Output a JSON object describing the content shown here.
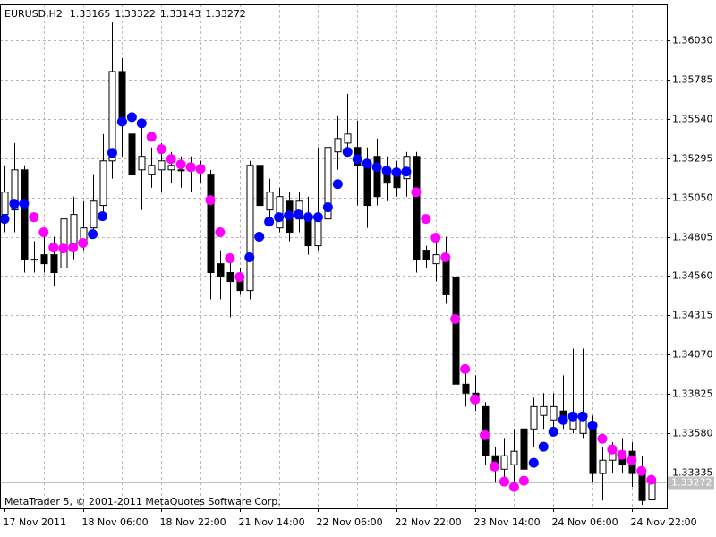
{
  "chart_data": {
    "type": "candlestick",
    "symbol": "EURUSD,H2",
    "footer": "MetaTrader 5, © 2001-2011 MetaQuotes Software Corp.",
    "categories": [
      "17 Nov 2011",
      null,
      null,
      null,
      null,
      null,
      null,
      null,
      "18 Nov 06:00",
      null,
      null,
      null,
      null,
      null,
      null,
      null,
      "18 Nov 22:00",
      null,
      null,
      null,
      null,
      null,
      null,
      null,
      "21 Nov 14:00",
      null,
      null,
      null,
      null,
      null,
      null,
      null,
      "22 Nov 06:00",
      null,
      null,
      null,
      null,
      null,
      null,
      null,
      "22 Nov 22:00",
      null,
      null,
      null,
      null,
      null,
      null,
      null,
      "23 Nov 14:00",
      null,
      null,
      null,
      null,
      null,
      null,
      null,
      "24 Nov 06:00",
      null,
      null,
      null,
      null,
      null,
      null,
      null,
      "24 Nov 22:00",
      null,
      null
    ],
    "open": [
      1.34944,
      1.34972,
      1.35222,
      1.34665,
      1.34693,
      1.34693,
      1.3461,
      1.34749,
      1.34777,
      1.3486,
      1.35,
      1.35278,
      1.35835,
      1.35445,
      1.35222,
      1.35195,
      1.35222,
      1.35222,
      1.35222,
      1.35222,
      1.3525,
      1.35195,
      1.34637,
      1.34582,
      1.34554,
      1.3447,
      1.3525,
      1.34972,
      1.3486,
      1.35027,
      1.34916,
      1.34944,
      1.34749,
      1.34916,
      1.35334,
      1.35389,
      1.35362,
      1.35278,
      1.35306,
      1.35222,
      1.35195,
      1.35167,
      1.35306,
      1.34721,
      1.34637,
      1.34693,
      1.34554,
      1.33886,
      1.3383,
      1.33746,
      1.3344,
      1.33356,
      1.33384,
      1.33607,
      1.33607,
      1.33691,
      1.33663,
      1.33719,
      1.33607,
      1.33579,
      1.33635,
      1.33329,
      1.33412,
      1.33468,
      1.33468,
      1.33329,
      1.33165
    ],
    "high": [
      1.3525,
      1.35389,
      1.3525,
      1.34777,
      1.3486,
      1.34805,
      1.35027,
      1.35055,
      1.35027,
      1.35195,
      1.35445,
      1.36141,
      1.35919,
      1.35557,
      1.35501,
      1.35362,
      1.35389,
      1.35334,
      1.35306,
      1.35306,
      1.35278,
      1.35222,
      1.34721,
      1.34665,
      1.3461,
      1.35278,
      1.35389,
      1.35167,
      1.35111,
      1.35083,
      1.35083,
      1.35055,
      1.35362,
      1.35557,
      1.35557,
      1.35696,
      1.35529,
      1.35362,
      1.35417,
      1.35306,
      1.35278,
      1.35334,
      1.35334,
      1.34749,
      1.34777,
      1.34805,
      1.34582,
      1.33997,
      1.33941,
      1.33774,
      1.33496,
      1.33551,
      1.33607,
      1.33663,
      1.33802,
      1.3383,
      1.3383,
      1.33941,
      1.34108,
      1.34108,
      1.33691,
      1.33496,
      1.33524,
      1.33551,
      1.33524,
      1.3344,
      1.33322
    ],
    "low": [
      1.34833,
      1.34833,
      1.34582,
      1.34582,
      1.34582,
      1.34498,
      1.34526,
      1.34665,
      1.34721,
      1.34805,
      1.34944,
      1.35167,
      1.35306,
      1.35027,
      1.34972,
      1.35111,
      1.35083,
      1.35139,
      1.35111,
      1.35083,
      1.35139,
      1.34415,
      1.34415,
      1.34303,
      1.34443,
      1.34415,
      1.34916,
      1.34888,
      1.34833,
      1.34777,
      1.34833,
      1.34693,
      1.34721,
      1.34888,
      1.35222,
      1.35306,
      1.35,
      1.3486,
      1.35,
      1.35027,
      1.35055,
      1.35055,
      1.34582,
      1.3461,
      1.34526,
      1.34387,
      1.33858,
      1.33746,
      1.33719,
      1.33384,
      1.33273,
      1.33273,
      1.33245,
      1.33301,
      1.33496,
      1.33607,
      1.33607,
      1.33607,
      1.33579,
      1.33551,
      1.33273,
      1.33161,
      1.33329,
      1.33329,
      1.33245,
      1.33134,
      1.33143
    ],
    "close": [
      1.35083,
      1.35222,
      1.34665,
      1.3466,
      1.34637,
      1.34582,
      1.34916,
      1.34944,
      1.3486,
      1.35027,
      1.35278,
      1.35835,
      1.35501,
      1.35195,
      1.35306,
      1.3525,
      1.35278,
      1.3525,
      1.35222,
      1.35222,
      1.35222,
      1.34582,
      1.34554,
      1.34526,
      1.3447,
      1.3525,
      1.35,
      1.35083,
      1.35055,
      1.34833,
      1.35027,
      1.34749,
      1.34916,
      1.35362,
      1.35417,
      1.35445,
      1.3525,
      1.35,
      1.35055,
      1.35139,
      1.35111,
      1.35306,
      1.34665,
      1.34665,
      1.34693,
      1.34443,
      1.33886,
      1.3383,
      1.33774,
      1.3344,
      1.33384,
      1.3344,
      1.33468,
      1.33356,
      1.33746,
      1.33746,
      1.33746,
      1.33663,
      1.33691,
      1.33691,
      1.33329,
      1.33412,
      1.33468,
      1.33384,
      1.33329,
      1.33161,
      1.33272
    ],
    "up_color": "#ffffff",
    "down_color": "#000000",
    "indicator": {
      "values": [
        1.34916,
        1.35011,
        1.35011,
        1.34927,
        1.34833,
        1.34738,
        1.34732,
        1.34738,
        1.34766,
        1.34821,
        1.34933,
        1.35328,
        1.35523,
        1.35551,
        1.35512,
        1.35428,
        1.35351,
        1.35289,
        1.35256,
        1.35239,
        1.35228,
        1.35033,
        1.34833,
        1.34671,
        1.34554,
        1.34677,
        1.34805,
        1.34899,
        1.34927,
        1.34938,
        1.34944,
        1.34927,
        1.34927,
        1.34989,
        1.35133,
        1.35334,
        1.35289,
        1.35261,
        1.35239,
        1.35217,
        1.35206,
        1.35211,
        1.35083,
        1.34916,
        1.34799,
        1.34677,
        1.34292,
        1.3398,
        1.33791,
        1.33568,
        1.33373,
        1.33279,
        1.33245,
        1.33284,
        1.33396,
        1.33496,
        1.3359,
        1.33663,
        1.33685,
        1.33685,
        1.33629,
        1.33546,
        1.33479,
        1.33446,
        1.33412,
        1.33345,
        1.3329
      ],
      "colors": [
        "#0000ff",
        "#0000ff",
        "#0000ff",
        "#ff00ff",
        "#ff00ff",
        "#ff00ff",
        "#ff00ff",
        "#ff00ff",
        "#ff00ff",
        "#0000ff",
        "#0000ff",
        "#0000ff",
        "#0000ff",
        "#0000ff",
        "#0000ff",
        "#ff00ff",
        "#ff00ff",
        "#ff00ff",
        "#ff00ff",
        "#ff00ff",
        "#ff00ff",
        "#ff00ff",
        "#ff00ff",
        "#ff00ff",
        "#ff00ff",
        "#0000ff",
        "#0000ff",
        "#0000ff",
        "#0000ff",
        "#0000ff",
        "#0000ff",
        "#0000ff",
        "#0000ff",
        "#0000ff",
        "#0000ff",
        "#0000ff",
        "#0000ff",
        "#0000ff",
        "#0000ff",
        "#0000ff",
        "#0000ff",
        "#0000ff",
        "#ff00ff",
        "#ff00ff",
        "#ff00ff",
        "#ff00ff",
        "#ff00ff",
        "#ff00ff",
        "#ff00ff",
        "#ff00ff",
        "#ff00ff",
        "#ff00ff",
        "#ff00ff",
        "#ff00ff",
        "#0000ff",
        "#0000ff",
        "#0000ff",
        "#0000ff",
        "#0000ff",
        "#0000ff",
        "#0000ff",
        "#ff00ff",
        "#ff00ff",
        "#ff00ff",
        "#ff00ff",
        "#ff00ff",
        "#ff00ff"
      ]
    },
    "ylim": [
      1.33112,
      1.36253
    ],
    "yticks": [
      1.33335,
      {
        "value": 1.3358,
        "label": "1.33580"
      },
      1.33825,
      {
        "value": 1.3407,
        "label": "1.34070"
      },
      1.34315,
      {
        "value": 1.3456,
        "label": "1.34560"
      },
      1.34805,
      {
        "value": 1.3505,
        "label": "1.35050"
      },
      1.35295,
      {
        "value": 1.3554,
        "label": "1.35540"
      },
      1.35785,
      {
        "value": 1.3603,
        "label": "1.36030"
      }
    ],
    "grid": true,
    "current_price_color": "#c0c0c0"
  }
}
